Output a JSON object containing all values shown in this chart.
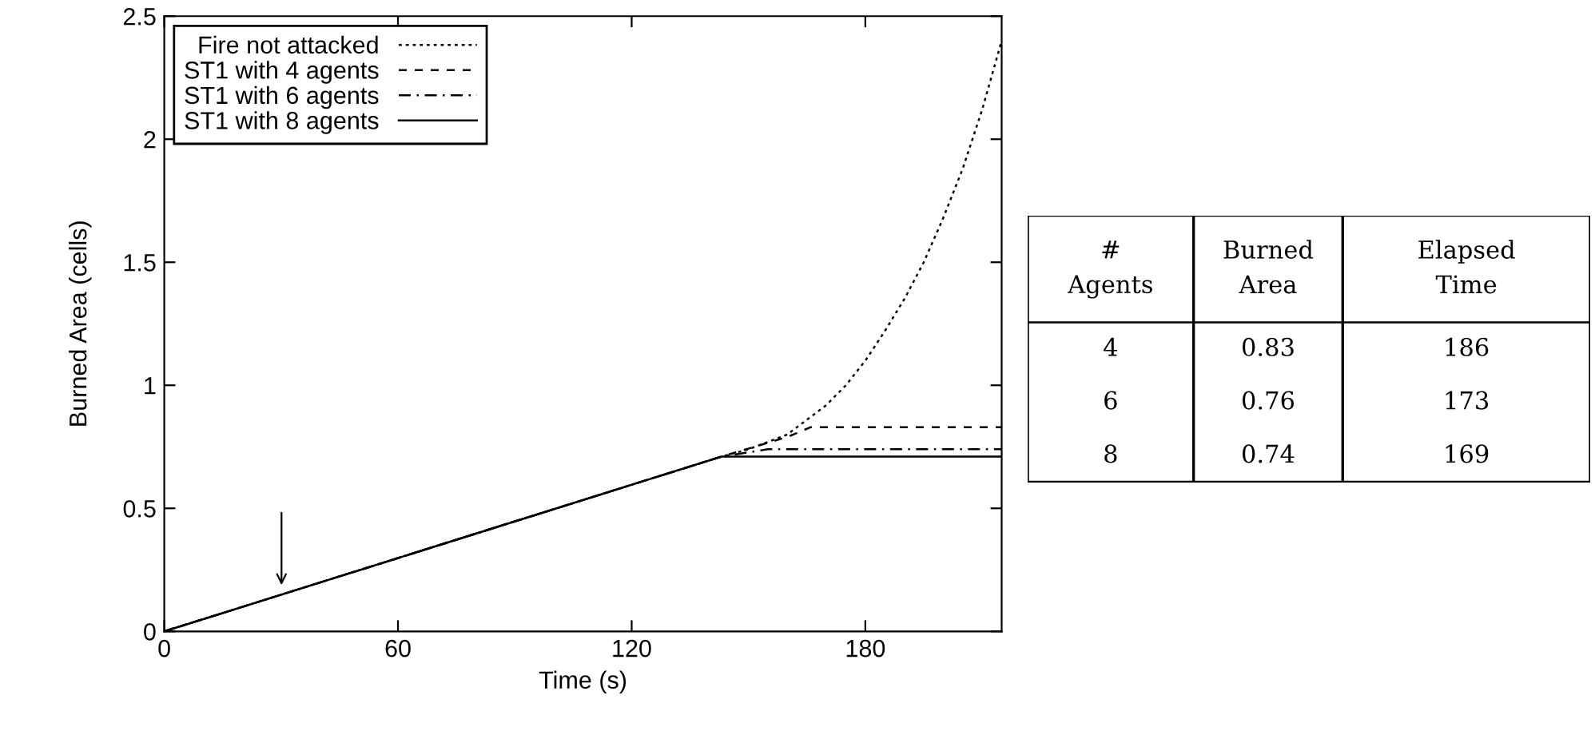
{
  "chart_data": [
    {
      "type": "line",
      "xlabel": "Time (s)",
      "ylabel": "Burned Area (cells)",
      "xlim": [
        0,
        215
      ],
      "xticks": [
        0,
        60,
        120,
        180
      ],
      "ylim": [
        0,
        2.5
      ],
      "yticks": [
        0,
        0.5,
        1,
        1.5,
        2,
        2.5
      ],
      "grid": false,
      "legend": "top left",
      "series": [
        {
          "name": "Fire not attacked",
          "color": "#000000",
          "line_style": "dotted",
          "x": [
            0,
            143,
            150,
            160,
            165,
            170,
            175,
            180,
            185,
            190,
            195,
            200,
            205,
            210,
            215
          ],
          "values": [
            0,
            0.71,
            0.74,
            0.8,
            0.86,
            0.92,
            1.0,
            1.1,
            1.22,
            1.35,
            1.5,
            1.68,
            1.88,
            2.12,
            2.4
          ]
        },
        {
          "name": "ST1 with 4 agents",
          "color": "#000000",
          "line_style": "dashed",
          "x": [
            0,
            143,
            160,
            166,
            215
          ],
          "values": [
            0,
            0.71,
            0.79,
            0.83,
            0.83
          ]
        },
        {
          "name": "ST1 with 6 agents",
          "color": "#000000",
          "line_style": "dashdot",
          "x": [
            0,
            143,
            155,
            215
          ],
          "values": [
            0,
            0.71,
            0.74,
            0.74
          ]
        },
        {
          "name": "ST1 with 8 agents",
          "color": "#000000",
          "line_style": "solid",
          "x": [
            0,
            143,
            215
          ],
          "values": [
            0,
            0.71,
            0.71
          ]
        }
      ]
    },
    {
      "type": "other",
      "annotations": [
        "#\nAgents",
        "Burned\nArea",
        "Elapsed\nTime",
        "4",
        "0.83",
        "186",
        "6",
        "0.76",
        "173",
        "8",
        "0.74",
        "169"
      ]
    }
  ]
}
